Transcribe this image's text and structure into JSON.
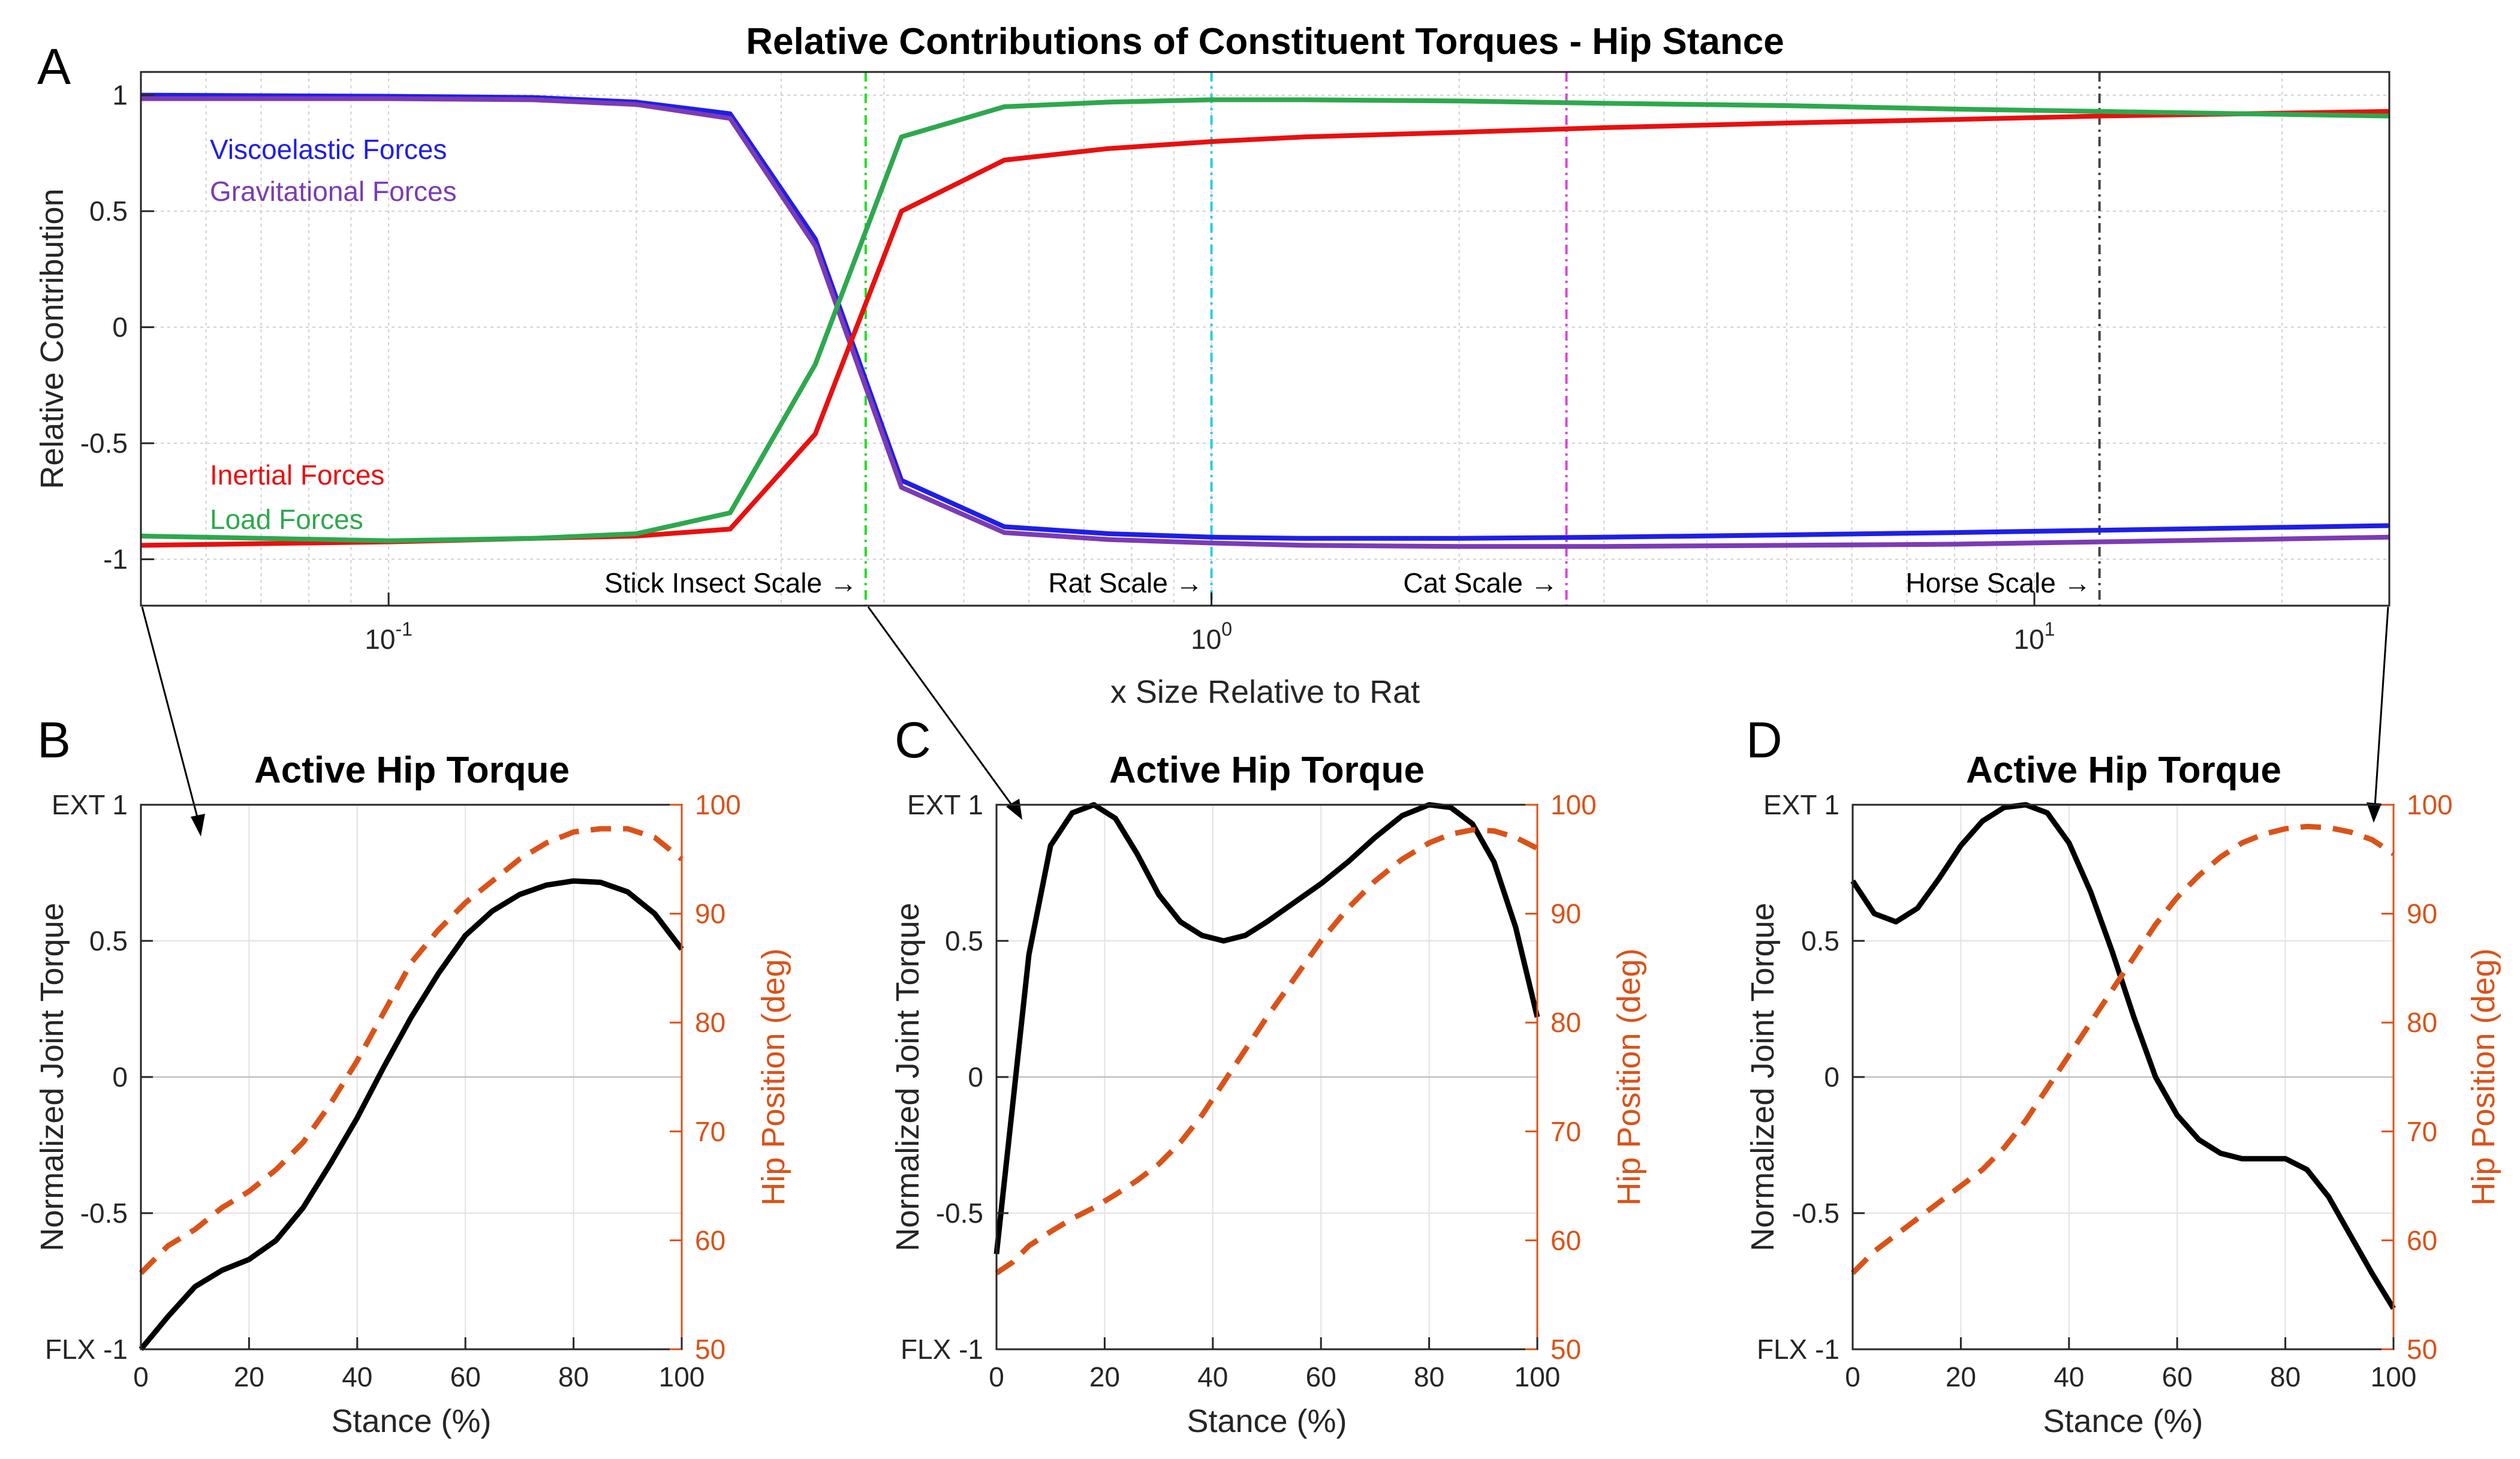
{
  "chart_data": [
    {
      "panel": "A",
      "type": "line",
      "title": "Relative Contributions of Constituent Torques - Hip Stance",
      "xlabel": "x Size Relative to Rat",
      "ylabel": "Relative Contribution",
      "xscale": "log",
      "xlim": [
        0.05,
        27
      ],
      "ylim": [
        -1.2,
        1.1
      ],
      "grid": true,
      "xticks": [
        {
          "value": 0.1,
          "base": "10",
          "exp": "-1"
        },
        {
          "value": 1,
          "base": "10",
          "exp": "0"
        },
        {
          "value": 10,
          "base": "10",
          "exp": "1"
        }
      ],
      "yticks": [
        {
          "value": 1,
          "label": "1"
        },
        {
          "value": 0.5,
          "label": "0.5"
        },
        {
          "value": 0,
          "label": "0"
        },
        {
          "value": -0.5,
          "label": "-0.5"
        },
        {
          "value": -1,
          "label": "-1"
        }
      ],
      "x": [
        0.05,
        0.1,
        0.15,
        0.2,
        0.26,
        0.33,
        0.42,
        0.56,
        0.75,
        1.0,
        1.3,
        2.0,
        3.0,
        5.0,
        8.0,
        12.0,
        18.0,
        27.0
      ],
      "series": [
        {
          "name": "Viscoelastic Forces",
          "color": "#1f1fe6",
          "values": [
            1.0,
            0.995,
            0.99,
            0.97,
            0.92,
            0.38,
            -0.66,
            -0.86,
            -0.89,
            -0.905,
            -0.91,
            -0.91,
            -0.905,
            -0.895,
            -0.885,
            -0.875,
            -0.865,
            -0.855
          ]
        },
        {
          "name": "Gravitational Forces",
          "color": "#7b3bb5",
          "values": [
            0.985,
            0.985,
            0.98,
            0.96,
            0.9,
            0.35,
            -0.69,
            -0.885,
            -0.915,
            -0.93,
            -0.94,
            -0.945,
            -0.945,
            -0.94,
            -0.935,
            -0.925,
            -0.915,
            -0.905
          ]
        },
        {
          "name": "Inertial Forces",
          "color": "#e81010",
          "values": [
            -0.94,
            -0.925,
            -0.91,
            -0.9,
            -0.87,
            -0.46,
            0.5,
            0.72,
            0.77,
            0.8,
            0.82,
            0.84,
            0.86,
            0.88,
            0.895,
            0.91,
            0.92,
            0.93
          ]
        },
        {
          "name": "Load Forces",
          "color": "#2ea84e",
          "values": [
            -0.9,
            -0.92,
            -0.91,
            -0.89,
            -0.8,
            -0.16,
            0.82,
            0.95,
            0.97,
            0.98,
            0.98,
            0.975,
            0.965,
            0.955,
            0.94,
            0.93,
            0.92,
            0.91
          ]
        }
      ],
      "scale_markers": [
        {
          "label": "Stick Insect Scale →",
          "x": 0.38,
          "color": "#22dd22"
        },
        {
          "label": "Rat Scale →",
          "x": 1.0,
          "color": "#22d0e0"
        },
        {
          "label": "Cat Scale →",
          "x": 2.7,
          "color": "#e040e0"
        },
        {
          "label": "Horse Scale →",
          "x": 12.0,
          "color": "#444444"
        }
      ]
    },
    {
      "panel": "B",
      "type": "line",
      "title": "Active Hip Torque",
      "xlabel": "Stance (%)",
      "ylabel": "Normalized Joint Torque",
      "y2label": "Hip Position (deg)",
      "xlim": [
        0,
        100
      ],
      "ylim": [
        -1,
        1
      ],
      "y2lim": [
        50,
        100
      ],
      "xticks": [
        "0",
        "20",
        "40",
        "60",
        "80",
        "100"
      ],
      "yticks": [
        {
          "value": 1,
          "label": "EXT  1"
        },
        {
          "value": 0.5,
          "label": "0.5"
        },
        {
          "value": 0,
          "label": "0"
        },
        {
          "value": -0.5,
          "label": "-0.5"
        },
        {
          "value": -1,
          "label": "FLX  -1"
        }
      ],
      "y2ticks": [
        "100",
        "90",
        "80",
        "70",
        "60",
        "50"
      ],
      "x": [
        0,
        5,
        10,
        15,
        20,
        25,
        30,
        35,
        40,
        45,
        50,
        55,
        60,
        65,
        70,
        75,
        80,
        85,
        90,
        95,
        100
      ],
      "series": [
        {
          "name": "torque",
          "axis": "left",
          "color": "#000000",
          "dash": "solid",
          "values": [
            -1.0,
            -0.88,
            -0.77,
            -0.71,
            -0.67,
            -0.6,
            -0.48,
            -0.32,
            -0.15,
            0.04,
            0.22,
            0.38,
            0.52,
            0.61,
            0.67,
            0.705,
            0.72,
            0.715,
            0.68,
            0.6,
            0.47
          ]
        },
        {
          "name": "hip position",
          "axis": "right",
          "color": "#d95319",
          "dash": "dashed",
          "values": [
            57,
            59.5,
            61,
            63,
            64.5,
            66.5,
            69,
            72.5,
            76.5,
            81,
            85.5,
            88.5,
            91,
            93,
            95,
            96.5,
            97.5,
            97.8,
            97.8,
            97,
            95
          ]
        }
      ]
    },
    {
      "panel": "C",
      "type": "line",
      "title": "Active Hip Torque",
      "xlabel": "Stance (%)",
      "ylabel": "Normalized Joint Torque",
      "y2label": "Hip Position (deg)",
      "xlim": [
        0,
        100
      ],
      "ylim": [
        -1,
        1
      ],
      "y2lim": [
        50,
        100
      ],
      "xticks": [
        "0",
        "20",
        "40",
        "60",
        "80",
        "100"
      ],
      "yticks": [
        {
          "value": 1,
          "label": "EXT  1"
        },
        {
          "value": 0.5,
          "label": "0.5"
        },
        {
          "value": 0,
          "label": "0"
        },
        {
          "value": -0.5,
          "label": "-0.5"
        },
        {
          "value": -1,
          "label": "FLX  -1"
        }
      ],
      "y2ticks": [
        "100",
        "90",
        "80",
        "70",
        "60",
        "50"
      ],
      "x": [
        0,
        3,
        6,
        10,
        14,
        18,
        22,
        26,
        30,
        34,
        38,
        42,
        46,
        50,
        55,
        60,
        65,
        70,
        75,
        80,
        84,
        88,
        92,
        96,
        100
      ],
      "series": [
        {
          "name": "torque",
          "axis": "left",
          "color": "#000000",
          "dash": "solid",
          "values": [
            -0.65,
            -0.1,
            0.45,
            0.85,
            0.97,
            1.0,
            0.95,
            0.82,
            0.67,
            0.57,
            0.52,
            0.5,
            0.52,
            0.57,
            0.64,
            0.71,
            0.79,
            0.88,
            0.96,
            1.0,
            0.99,
            0.93,
            0.79,
            0.55,
            0.22
          ]
        },
        {
          "name": "hip position",
          "axis": "right",
          "color": "#d95319",
          "dash": "dashed",
          "values": [
            57,
            58,
            59.5,
            60.8,
            62,
            63,
            64.2,
            65.5,
            67,
            69,
            71.5,
            74.5,
            77.5,
            80.5,
            84,
            87.5,
            90.5,
            93,
            95,
            96.5,
            97.3,
            97.7,
            97.6,
            97,
            96
          ]
        }
      ]
    },
    {
      "panel": "D",
      "type": "line",
      "title": "Active Hip Torque",
      "xlabel": "Stance (%)",
      "ylabel": "Normalized Joint Torque",
      "y2label": "Hip Position (deg)",
      "xlim": [
        0,
        100
      ],
      "ylim": [
        -1,
        1
      ],
      "y2lim": [
        50,
        100
      ],
      "xticks": [
        "0",
        "20",
        "40",
        "60",
        "80",
        "100"
      ],
      "yticks": [
        {
          "value": 1,
          "label": "EXT  1"
        },
        {
          "value": 0.5,
          "label": "0.5"
        },
        {
          "value": 0,
          "label": "0"
        },
        {
          "value": -0.5,
          "label": "-0.5"
        },
        {
          "value": -1,
          "label": "FLX  -1"
        }
      ],
      "y2ticks": [
        "100",
        "90",
        "80",
        "70",
        "60",
        "50"
      ],
      "x": [
        0,
        4,
        8,
        12,
        16,
        20,
        24,
        28,
        32,
        36,
        40,
        44,
        48,
        52,
        56,
        60,
        64,
        68,
        72,
        76,
        80,
        84,
        88,
        92,
        96,
        100
      ],
      "series": [
        {
          "name": "torque",
          "axis": "left",
          "color": "#000000",
          "dash": "solid",
          "values": [
            0.72,
            0.6,
            0.57,
            0.62,
            0.73,
            0.85,
            0.94,
            0.99,
            1.0,
            0.97,
            0.86,
            0.68,
            0.46,
            0.22,
            0.0,
            -0.14,
            -0.23,
            -0.28,
            -0.3,
            -0.3,
            -0.3,
            -0.34,
            -0.44,
            -0.58,
            -0.72,
            -0.85
          ]
        },
        {
          "name": "hip position",
          "axis": "right",
          "color": "#d95319",
          "dash": "dashed",
          "values": [
            57,
            59,
            60.5,
            62,
            63.5,
            65,
            66.5,
            68.5,
            71,
            74,
            77,
            80,
            83,
            86,
            89,
            91.5,
            93.5,
            95.2,
            96.5,
            97.3,
            97.8,
            98,
            97.9,
            97.5,
            96.8,
            95.5
          ]
        }
      ]
    }
  ],
  "panel_labels": [
    "A",
    "B",
    "C",
    "D"
  ]
}
